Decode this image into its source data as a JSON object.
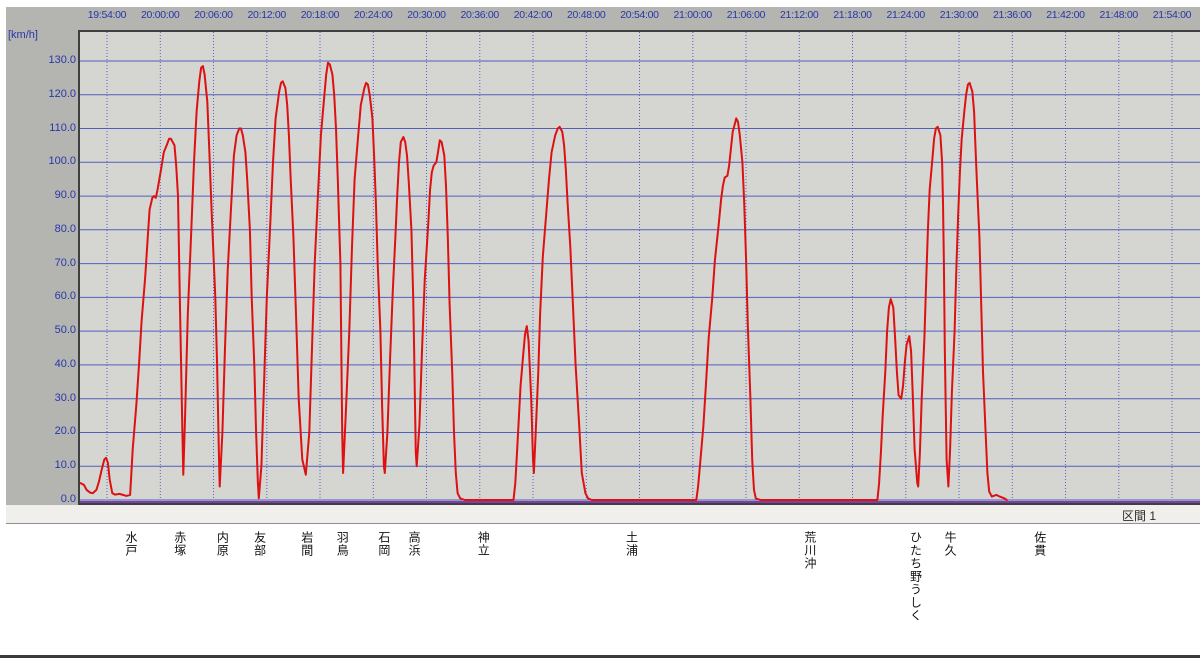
{
  "labels": {
    "unit": "[km/h]",
    "section": "区間 1"
  },
  "colors": {
    "widget_bg": "#b4b4b1",
    "plot_bg": "#d5d5d1",
    "grid_blue": "#4353bc",
    "grid_dotted_blue": "#4d5cc2",
    "axis_text_blue": "#2737aa",
    "series_red": "#dd1111",
    "baseline_purple": "#7b3fa6",
    "plot_border": "#3f3f3f",
    "strip_bg": "#f0efec",
    "station_text": "#111111"
  },
  "chart_data": {
    "type": "line",
    "title": "",
    "xlabel": "",
    "ylabel": "[km/h]",
    "x_axis": {
      "unit": "time",
      "tick_interval_min": 6,
      "tick_labels": [
        "19:54:00",
        "20:00:00",
        "20:06:00",
        "20:12:00",
        "20:18:00",
        "20:24:00",
        "20:30:00",
        "20:36:00",
        "20:42:00",
        "20:48:00",
        "20:54:00",
        "21:00:00",
        "21:06:00",
        "21:12:00",
        "21:18:00",
        "21:24:00",
        "21:30:00",
        "21:36:00",
        "21:42:00",
        "21:48:00",
        "21:54:00"
      ],
      "plot_range_offset_min": [
        -3.0,
        123.2
      ]
    },
    "y_axis": {
      "min": 0,
      "max": 130,
      "step": 10,
      "tick_labels": [
        "0.0",
        "10.0",
        "20.0",
        "30.0",
        "40.0",
        "50.0",
        "60.0",
        "70.0",
        "80.0",
        "90.0",
        "100.0",
        "110.0",
        "120.0",
        "130.0"
      ],
      "ylim": [
        0,
        139
      ]
    },
    "grid": {
      "horizontal": "solid",
      "vertical": "dotted"
    },
    "stations": [
      {
        "name": "水戸",
        "offset_min": 2.7
      },
      {
        "name": "赤塚",
        "offset_min": 8.2
      },
      {
        "name": "内原",
        "offset_min": 13.0
      },
      {
        "name": "友部",
        "offset_min": 17.2
      },
      {
        "name": "岩間",
        "offset_min": 22.5
      },
      {
        "name": "羽鳥",
        "offset_min": 26.5
      },
      {
        "name": "石岡",
        "offset_min": 31.2
      },
      {
        "name": "高浜",
        "offset_min": 34.6
      },
      {
        "name": "神立",
        "offset_min": 42.4
      },
      {
        "name": "土浦",
        "offset_min": 59.1
      },
      {
        "name": "荒川沖",
        "offset_min": 79.2
      },
      {
        "name": "ひたち野うしく",
        "offset_min": 91.1
      },
      {
        "name": "牛久",
        "offset_min": 95.0
      },
      {
        "name": "佐貫",
        "offset_min": 105.1
      }
    ],
    "series": [
      {
        "name": "speed",
        "color": "#dd1111",
        "unit": "km/h",
        "points_offset_min_kmh": [
          [
            -3.0,
            5
          ],
          [
            -2.6,
            4.5
          ],
          [
            -2.3,
            3
          ],
          [
            -1.9,
            2.2
          ],
          [
            -1.6,
            2
          ],
          [
            -1.2,
            3
          ],
          [
            -0.9,
            5.5
          ],
          [
            -0.6,
            9
          ],
          [
            -0.3,
            12
          ],
          [
            -0.1,
            12.5
          ],
          [
            0.1,
            11
          ],
          [
            0.3,
            6
          ],
          [
            0.6,
            2
          ],
          [
            0.9,
            1.6
          ],
          [
            1.4,
            1.8
          ],
          [
            1.8,
            1.5
          ],
          [
            2.2,
            1.2
          ],
          [
            2.6,
            1.5
          ],
          [
            2.7,
            6
          ],
          [
            2.9,
            15
          ],
          [
            3.3,
            28
          ],
          [
            3.6,
            40
          ],
          [
            3.9,
            53
          ],
          [
            4.3,
            66
          ],
          [
            4.6,
            78
          ],
          [
            4.8,
            86
          ],
          [
            5.1,
            89.5
          ],
          [
            5.3,
            90
          ],
          [
            5.5,
            89.5
          ],
          [
            5.7,
            92
          ],
          [
            6.1,
            98
          ],
          [
            6.4,
            103
          ],
          [
            6.8,
            105.5
          ],
          [
            7.0,
            107
          ],
          [
            7.2,
            107
          ],
          [
            7.6,
            105
          ],
          [
            7.8,
            99
          ],
          [
            8.0,
            90
          ],
          [
            8.2,
            60
          ],
          [
            8.5,
            20
          ],
          [
            8.6,
            7.5
          ],
          [
            8.8,
            25
          ],
          [
            9.1,
            55
          ],
          [
            9.5,
            80
          ],
          [
            9.8,
            100
          ],
          [
            10.1,
            115
          ],
          [
            10.4,
            124
          ],
          [
            10.6,
            128
          ],
          [
            10.8,
            128.5
          ],
          [
            11.0,
            126
          ],
          [
            11.3,
            118
          ],
          [
            11.5,
            105
          ],
          [
            11.8,
            85
          ],
          [
            12.2,
            60
          ],
          [
            12.4,
            40
          ],
          [
            12.6,
            15
          ],
          [
            12.7,
            4
          ],
          [
            13.0,
            20
          ],
          [
            13.3,
            45
          ],
          [
            13.6,
            68
          ],
          [
            14.0,
            88
          ],
          [
            14.3,
            102
          ],
          [
            14.6,
            108
          ],
          [
            14.9,
            110
          ],
          [
            15.1,
            110
          ],
          [
            15.3,
            108
          ],
          [
            15.6,
            103
          ],
          [
            15.8,
            95
          ],
          [
            16.1,
            80
          ],
          [
            16.3,
            60
          ],
          [
            16.6,
            40
          ],
          [
            16.8,
            20
          ],
          [
            17.0,
            5
          ],
          [
            17.1,
            0.5
          ],
          [
            17.4,
            10
          ],
          [
            17.7,
            35
          ],
          [
            18.0,
            60
          ],
          [
            18.4,
            82
          ],
          [
            18.7,
            100
          ],
          [
            19.0,
            113
          ],
          [
            19.4,
            121
          ],
          [
            19.6,
            123.5
          ],
          [
            19.8,
            124
          ],
          [
            20.1,
            122
          ],
          [
            20.3,
            117
          ],
          [
            20.5,
            108
          ],
          [
            20.7,
            95
          ],
          [
            21.0,
            78
          ],
          [
            21.3,
            55
          ],
          [
            21.6,
            30
          ],
          [
            22.0,
            12
          ],
          [
            22.4,
            7.5
          ],
          [
            22.8,
            20
          ],
          [
            23.1,
            45
          ],
          [
            23.4,
            70
          ],
          [
            23.8,
            92
          ],
          [
            24.1,
            108
          ],
          [
            24.5,
            120
          ],
          [
            24.7,
            126
          ],
          [
            24.9,
            129.5
          ],
          [
            25.1,
            129
          ],
          [
            25.4,
            126
          ],
          [
            25.6,
            120
          ],
          [
            25.8,
            110
          ],
          [
            26.0,
            95
          ],
          [
            26.3,
            70
          ],
          [
            26.4,
            45
          ],
          [
            26.5,
            20
          ],
          [
            26.6,
            8
          ],
          [
            26.9,
            25
          ],
          [
            27.3,
            50
          ],
          [
            27.6,
            75
          ],
          [
            27.9,
            95
          ],
          [
            28.3,
            108
          ],
          [
            28.6,
            117
          ],
          [
            29.0,
            122
          ],
          [
            29.2,
            123.5
          ],
          [
            29.4,
            123
          ],
          [
            29.6,
            120
          ],
          [
            29.9,
            113
          ],
          [
            30.1,
            102
          ],
          [
            30.3,
            88
          ],
          [
            30.5,
            70
          ],
          [
            30.8,
            50
          ],
          [
            31.0,
            28
          ],
          [
            31.2,
            10
          ],
          [
            31.3,
            8
          ],
          [
            31.6,
            20
          ],
          [
            31.9,
            42
          ],
          [
            32.2,
            62
          ],
          [
            32.5,
            78
          ],
          [
            32.7,
            90
          ],
          [
            32.9,
            100
          ],
          [
            33.1,
            106
          ],
          [
            33.4,
            107.5
          ],
          [
            33.6,
            106
          ],
          [
            33.8,
            102
          ],
          [
            34.0,
            94
          ],
          [
            34.3,
            80
          ],
          [
            34.5,
            60
          ],
          [
            34.6,
            45
          ],
          [
            34.7,
            28
          ],
          [
            34.8,
            14
          ],
          [
            34.9,
            10
          ],
          [
            35.2,
            22
          ],
          [
            35.5,
            45
          ],
          [
            35.8,
            65
          ],
          [
            36.2,
            82
          ],
          [
            36.4,
            92
          ],
          [
            36.6,
            97
          ],
          [
            36.8,
            99
          ],
          [
            37.1,
            100
          ],
          [
            37.3,
            103
          ],
          [
            37.5,
            106.5
          ],
          [
            37.7,
            106
          ],
          [
            38.0,
            102
          ],
          [
            38.2,
            93
          ],
          [
            38.4,
            78
          ],
          [
            38.6,
            58
          ],
          [
            38.9,
            38
          ],
          [
            39.1,
            20
          ],
          [
            39.3,
            8
          ],
          [
            39.5,
            2
          ],
          [
            39.8,
            0.5
          ],
          [
            40.3,
            0
          ],
          [
            45.8,
            0
          ],
          [
            46.0,
            5
          ],
          [
            46.2,
            14
          ],
          [
            46.4,
            24
          ],
          [
            46.6,
            34
          ],
          [
            46.9,
            43
          ],
          [
            47.1,
            49
          ],
          [
            47.3,
            51.5
          ],
          [
            47.5,
            47
          ],
          [
            47.8,
            30
          ],
          [
            48.0,
            12
          ],
          [
            48.1,
            8
          ],
          [
            48.3,
            20
          ],
          [
            48.6,
            38
          ],
          [
            48.8,
            55
          ],
          [
            49.1,
            72
          ],
          [
            49.5,
            85
          ],
          [
            49.8,
            95
          ],
          [
            50.1,
            103
          ],
          [
            50.5,
            108
          ],
          [
            50.8,
            110
          ],
          [
            51.0,
            110.5
          ],
          [
            51.3,
            109
          ],
          [
            51.5,
            105
          ],
          [
            51.7,
            98
          ],
          [
            51.9,
            88
          ],
          [
            52.2,
            75
          ],
          [
            52.5,
            58
          ],
          [
            52.8,
            40
          ],
          [
            53.2,
            22
          ],
          [
            53.5,
            8
          ],
          [
            53.9,
            2
          ],
          [
            54.2,
            0.5
          ],
          [
            54.6,
            0
          ],
          [
            66.4,
            0
          ],
          [
            66.6,
            4
          ],
          [
            66.8,
            10
          ],
          [
            67.2,
            22
          ],
          [
            67.5,
            35
          ],
          [
            67.8,
            48
          ],
          [
            68.2,
            60
          ],
          [
            68.5,
            71
          ],
          [
            68.9,
            81
          ],
          [
            69.2,
            89
          ],
          [
            69.4,
            93
          ],
          [
            69.6,
            95.5
          ],
          [
            69.9,
            96
          ],
          [
            70.1,
            99
          ],
          [
            70.3,
            104
          ],
          [
            70.5,
            109
          ],
          [
            70.8,
            112
          ],
          [
            70.9,
            113
          ],
          [
            71.1,
            112
          ],
          [
            71.3,
            108
          ],
          [
            71.6,
            100
          ],
          [
            71.8,
            88
          ],
          [
            72.0,
            72
          ],
          [
            72.2,
            52
          ],
          [
            72.5,
            30
          ],
          [
            72.7,
            12
          ],
          [
            72.9,
            3
          ],
          [
            73.1,
            0.5
          ],
          [
            73.6,
            0
          ],
          [
            86.8,
            0
          ],
          [
            87.0,
            5
          ],
          [
            87.2,
            14
          ],
          [
            87.4,
            25
          ],
          [
            87.7,
            38
          ],
          [
            87.9,
            50
          ],
          [
            88.1,
            57
          ],
          [
            88.3,
            59.5
          ],
          [
            88.6,
            57
          ],
          [
            88.8,
            48
          ],
          [
            89.0,
            38
          ],
          [
            89.2,
            31
          ],
          [
            89.5,
            30
          ],
          [
            89.7,
            34
          ],
          [
            89.9,
            41
          ],
          [
            90.1,
            46
          ],
          [
            90.4,
            48.5
          ],
          [
            90.6,
            44
          ],
          [
            90.8,
            30
          ],
          [
            91.0,
            15
          ],
          [
            91.3,
            5
          ],
          [
            91.4,
            4
          ],
          [
            91.6,
            14
          ],
          [
            91.8,
            30
          ],
          [
            92.1,
            48
          ],
          [
            92.3,
            65
          ],
          [
            92.5,
            80
          ],
          [
            92.7,
            92
          ],
          [
            93.0,
            101
          ],
          [
            93.2,
            107
          ],
          [
            93.4,
            110
          ],
          [
            93.6,
            110.5
          ],
          [
            93.9,
            108
          ],
          [
            94.1,
            100
          ],
          [
            94.2,
            88
          ],
          [
            94.3,
            70
          ],
          [
            94.4,
            45
          ],
          [
            94.5,
            28
          ],
          [
            94.6,
            12
          ],
          [
            94.8,
            4
          ],
          [
            95.0,
            15
          ],
          [
            95.2,
            32
          ],
          [
            95.5,
            50
          ],
          [
            95.7,
            68
          ],
          [
            95.9,
            84
          ],
          [
            96.1,
            97
          ],
          [
            96.3,
            107
          ],
          [
            96.6,
            115
          ],
          [
            96.8,
            120
          ],
          [
            97.0,
            123
          ],
          [
            97.2,
            123.5
          ],
          [
            97.5,
            121
          ],
          [
            97.7,
            115
          ],
          [
            97.8,
            108
          ],
          [
            98.0,
            95
          ],
          [
            98.3,
            78
          ],
          [
            98.5,
            58
          ],
          [
            98.7,
            38
          ],
          [
            99.0,
            20
          ],
          [
            99.2,
            8
          ],
          [
            99.4,
            2.5
          ],
          [
            99.7,
            1
          ],
          [
            100.2,
            1.5
          ],
          [
            100.6,
            1
          ],
          [
            101.1,
            0.5
          ],
          [
            101.4,
            0
          ]
        ]
      },
      {
        "name": "zero-baseline",
        "color": "#7b3fa6",
        "value_kmh": 0
      }
    ]
  }
}
